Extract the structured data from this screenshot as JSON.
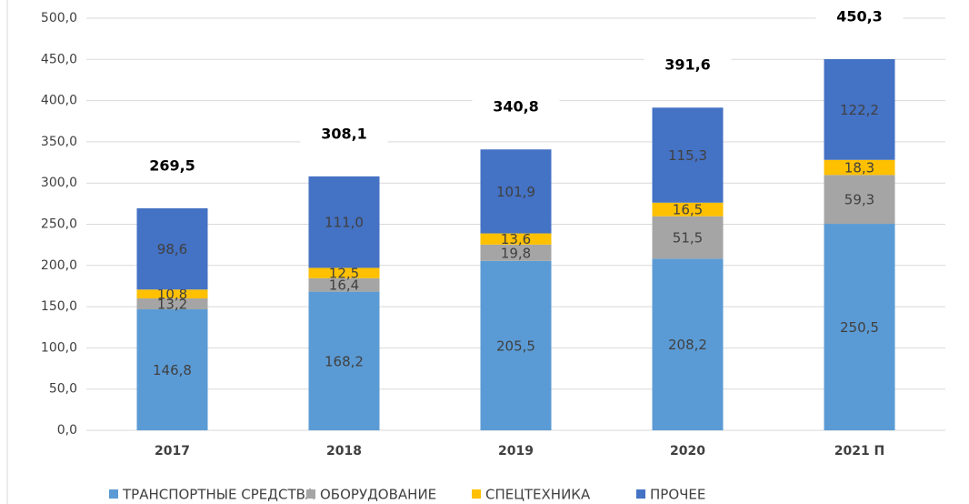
{
  "chart_data": {
    "type": "stacked_bar",
    "categories": [
      "2017",
      "2018",
      "2019",
      "2020",
      "2021 П"
    ],
    "series": [
      {
        "name": "ТРАНСПОРТНЫЕ СРЕДСТВА",
        "color": "#5b9bd5",
        "values": [
          146.8,
          168.2,
          205.5,
          208.2,
          250.5
        ],
        "value_labels": [
          "146,8",
          "168,2",
          "205,5",
          "208,2",
          "250,5"
        ]
      },
      {
        "name": "ОБОРУДОВАНИЕ",
        "color": "#a5a5a5",
        "values": [
          13.2,
          16.4,
          19.8,
          51.5,
          59.3
        ],
        "value_labels": [
          "13,2",
          "16,4",
          "19,8",
          "51,5",
          "59,3"
        ]
      },
      {
        "name": "СПЕЦТЕХНИКА",
        "color": "#ffc000",
        "values": [
          10.8,
          12.5,
          13.6,
          16.5,
          18.3
        ],
        "value_labels": [
          "10,8",
          "12,5",
          "13,6",
          "16,5",
          "18,3"
        ]
      },
      {
        "name": "ПРОЧЕЕ",
        "color": "#4472c4",
        "values": [
          98.6,
          111.0,
          101.9,
          115.3,
          122.2
        ],
        "value_labels": [
          "98,6",
          "111,0",
          "101,9",
          "115,3",
          "122,2"
        ]
      }
    ],
    "totals": [
      269.5,
      308.1,
      340.8,
      391.6,
      450.3
    ],
    "total_labels": [
      "269,5",
      "308,1",
      "340,8",
      "391,6",
      "450,3"
    ],
    "ylim": [
      0,
      500
    ],
    "yticks": [
      {
        "value": 0,
        "label": "0,0"
      },
      {
        "value": 50,
        "label": "50,0"
      },
      {
        "value": 100,
        "label": "100,0"
      },
      {
        "value": 150,
        "label": "150,0"
      },
      {
        "value": 200,
        "label": "200,0"
      },
      {
        "value": 250,
        "label": "250,0"
      },
      {
        "value": 300,
        "label": "300,0"
      },
      {
        "value": 350,
        "label": "350,0"
      },
      {
        "value": 400,
        "label": "400,0"
      },
      {
        "value": 450,
        "label": "450,0"
      },
      {
        "value": 500,
        "label": "500,0"
      }
    ],
    "grid": true,
    "legend": "bottom"
  }
}
